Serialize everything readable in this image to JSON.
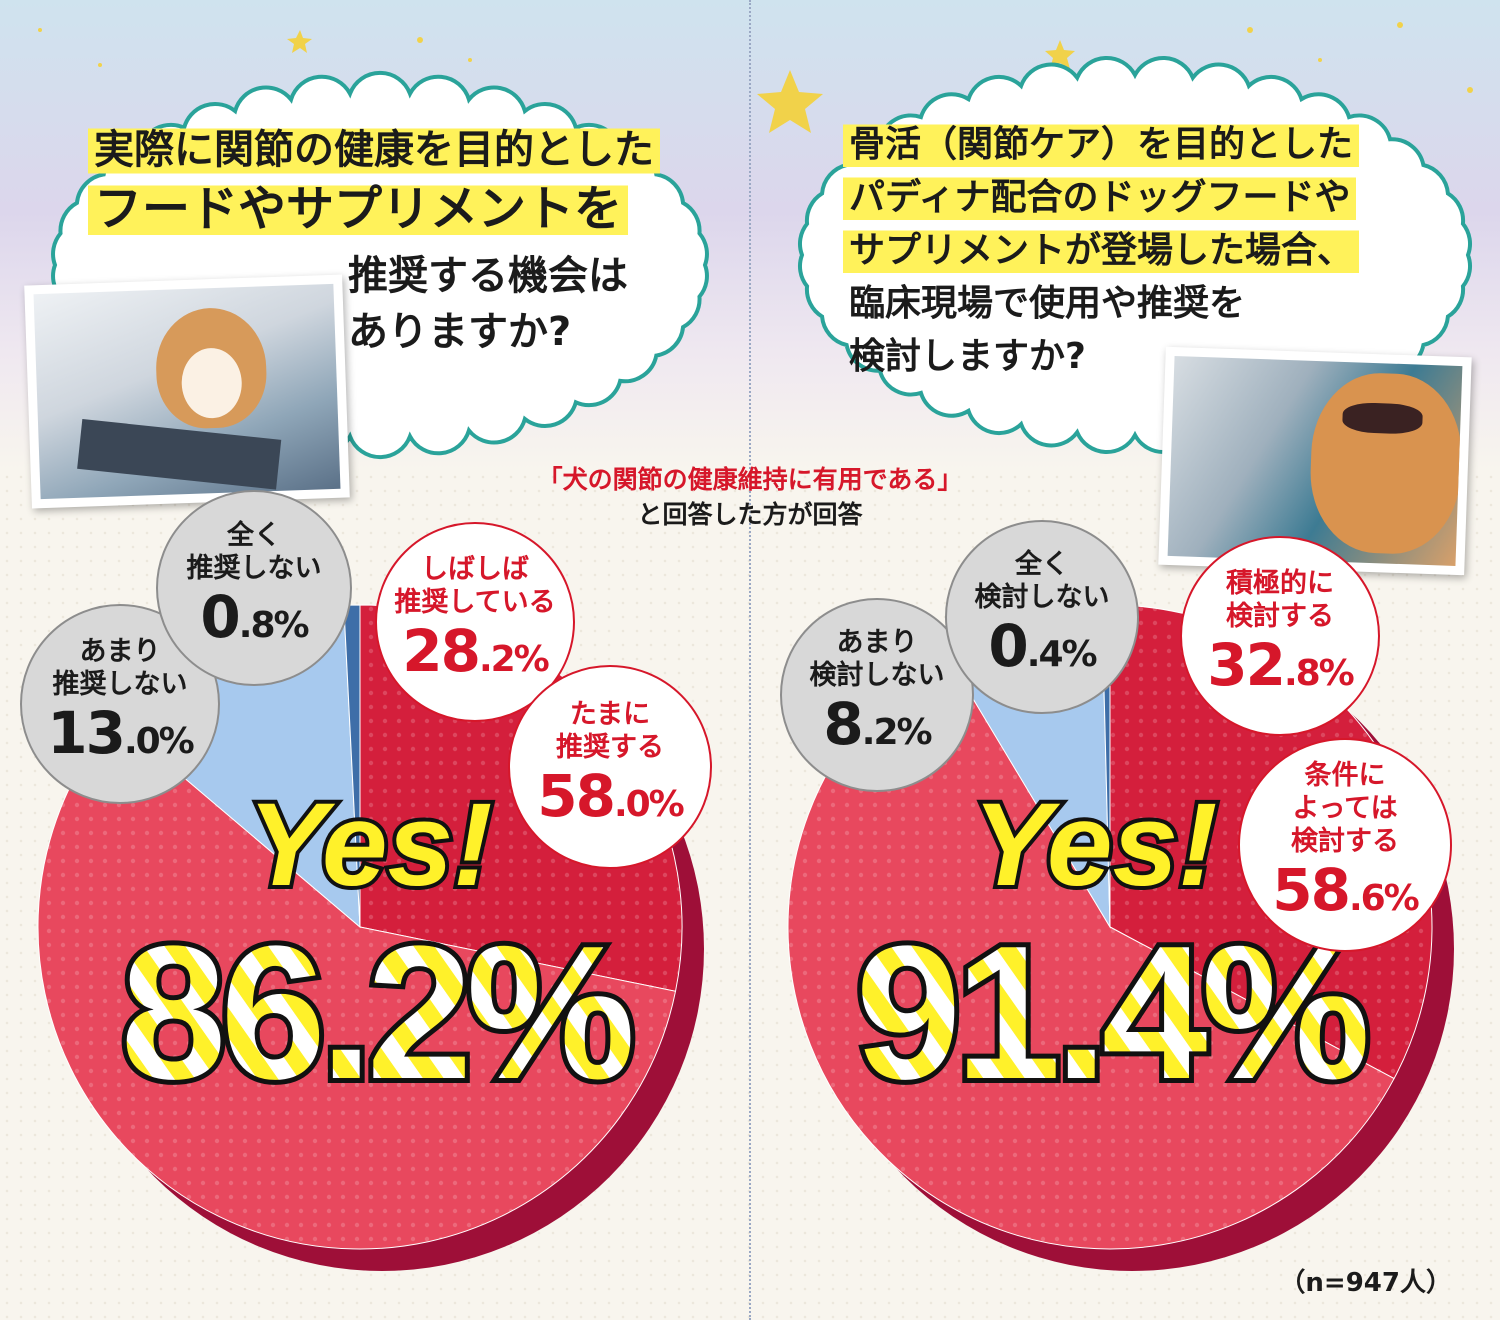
{
  "left": {
    "question": {
      "line1": "実際に関節の健康を目的とした",
      "line2": "フードやサプリメントを",
      "line3": "推奨する機会は",
      "line4": "ありますか?"
    },
    "yes_label": "Yes!",
    "yes_value": "86.2%",
    "labels": [
      {
        "text": "しばしば\n推奨している",
        "value": "28.2%"
      },
      {
        "text": "たまに\n推奨する",
        "value": "58.0%"
      },
      {
        "text": "あまり\n推奨しない",
        "value": "13.0%"
      },
      {
        "text": "全く\n推奨しない",
        "value": "0.8%"
      }
    ]
  },
  "right": {
    "question": {
      "line1": "骨活（関節ケア）を目的とした",
      "line2": "パディナ配合のドッグフードや",
      "line3": "サプリメントが登場した場合、",
      "line4": "臨床現場で使用や推奨を",
      "line5": "検討しますか?"
    },
    "yes_label": "Yes!",
    "yes_value": "91.4%",
    "labels": [
      {
        "text": "積極的に\n検討する",
        "value": "32.8%"
      },
      {
        "text": "条件に\nよっては\n検討する",
        "value": "58.6%"
      },
      {
        "text": "あまり\n検討しない",
        "value": "8.2%"
      },
      {
        "text": "全く\n検討しない",
        "value": "0.4%"
      }
    ]
  },
  "note": {
    "line1": "「犬の関節の健康維持に有用である」",
    "line2": "と回答した方が回答"
  },
  "footnote": "（n=947人）",
  "colors": {
    "slice_top": "#d41f3c",
    "slice_mid": "#e8485e",
    "slice_light": "#ea6673",
    "slice_gray": "#a7c9ee",
    "slice_dark": "#3e6ea8",
    "side": "#9e0f38"
  },
  "chart_data": [
    {
      "type": "pie",
      "categories": [
        "しばしば推奨している",
        "たまに推奨する",
        "あまり推奨しない",
        "全く推奨しない"
      ],
      "values": [
        28.2,
        58.0,
        13.0,
        0.8
      ]
    },
    {
      "type": "pie",
      "categories": [
        "積極的に検討する",
        "条件によっては検討する",
        "あまり検討しない",
        "全く検討しない"
      ],
      "values": [
        32.8,
        58.6,
        8.2,
        0.4
      ]
    }
  ]
}
